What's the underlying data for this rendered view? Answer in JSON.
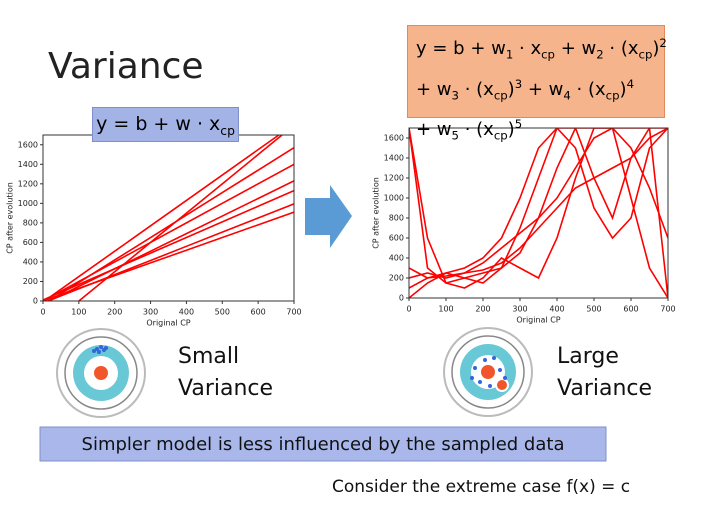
{
  "title": "Variance",
  "charts": [
    {
      "type": "line",
      "formula": [
        [
          {
            "t": "y = b + w · x"
          },
          {
            "t": "cp",
            "s": "sub"
          }
        ]
      ],
      "xlabel": "Original CP",
      "ylabel": "CP after evolution",
      "color": "#ff0000",
      "x": [
        0,
        100,
        200,
        300,
        400,
        500,
        600,
        700
      ],
      "xlim": [
        0,
        700
      ],
      "ylim": [
        0,
        1700
      ],
      "xticks": [
        0,
        100,
        200,
        300,
        400,
        500,
        600,
        700
      ],
      "yticks": [
        0,
        200,
        400,
        600,
        800,
        1000,
        1200,
        1400,
        1600
      ],
      "series": [
        {
          "values": [
            0,
            130,
            260,
            390,
            520,
            650,
            780,
            910
          ]
        },
        {
          "values": [
            -20,
            125,
            270,
            415,
            560,
            705,
            850,
            995
          ]
        },
        {
          "values": [
            10,
            170,
            330,
            490,
            650,
            810,
            970,
            1130
          ]
        },
        {
          "values": [
            -30,
            150,
            330,
            510,
            690,
            870,
            1050,
            1230
          ]
        },
        {
          "values": [
            0,
            200,
            400,
            600,
            800,
            1000,
            1200,
            1400
          ]
        },
        {
          "values": [
            -40,
            190,
            420,
            650,
            880,
            1110,
            1340,
            1570
          ]
        },
        {
          "values": [
            -10,
            250,
            510,
            770,
            1030,
            1290,
            1550,
            1810
          ]
        },
        {
          "values": [
            -300,
            0,
            300,
            600,
            900,
            1200,
            1500,
            1800
          ]
        }
      ],
      "target": [
        "Small",
        "Variance"
      ]
    },
    {
      "type": "line",
      "formula": [
        [
          {
            "t": "y = b + w"
          },
          {
            "t": "1",
            "s": "sub"
          },
          {
            "t": " · x"
          },
          {
            "t": "cp",
            "s": "sub"
          },
          {
            "t": " + w"
          },
          {
            "t": "2",
            "s": "sub"
          },
          {
            "t": " · (x"
          },
          {
            "t": "cp",
            "s": "sub"
          },
          {
            "t": ")"
          },
          {
            "t": "2",
            "s": "sup"
          }
        ],
        [
          {
            "t": "+ w"
          },
          {
            "t": "3",
            "s": "sub"
          },
          {
            "t": " · (x"
          },
          {
            "t": "cp",
            "s": "sub"
          },
          {
            "t": ")"
          },
          {
            "t": "3",
            "s": "sup"
          },
          {
            "t": " + w"
          },
          {
            "t": "4",
            "s": "sub"
          },
          {
            "t": " · (x"
          },
          {
            "t": "cp",
            "s": "sub"
          },
          {
            "t": ")"
          },
          {
            "t": "4",
            "s": "sup"
          }
        ],
        [
          {
            "t": "+ w"
          },
          {
            "t": "5",
            "s": "sub"
          },
          {
            "t": " · (x"
          },
          {
            "t": "cp",
            "s": "sub"
          },
          {
            "t": ")"
          },
          {
            "t": "5",
            "s": "sup"
          }
        ]
      ],
      "xlabel": "Original CP",
      "ylabel": "CP after evolution",
      "color": "#ff0000",
      "x": [
        0,
        50,
        100,
        150,
        200,
        250,
        300,
        350,
        400,
        450,
        500,
        550,
        600,
        650,
        700
      ],
      "xlim": [
        0,
        700
      ],
      "ylim": [
        0,
        1700
      ],
      "xticks": [
        0,
        100,
        200,
        300,
        400,
        500,
        600,
        700
      ],
      "yticks": [
        0,
        200,
        400,
        600,
        800,
        1000,
        1200,
        1400,
        1600
      ],
      "series": [
        {
          "values": [
            1700,
            300,
            150,
            200,
            250,
            300,
            450,
            800,
            1300,
            1700,
            1700,
            1700,
            1700,
            1700,
            1700
          ]
        },
        {
          "values": [
            100,
            200,
            220,
            250,
            280,
            350,
            500,
            700,
            900,
            1100,
            1200,
            1300,
            1400,
            1600,
            1700
          ]
        },
        {
          "values": [
            0,
            150,
            250,
            200,
            150,
            300,
            700,
            1200,
            1700,
            1500,
            900,
            600,
            800,
            1500,
            1700
          ]
        },
        {
          "values": [
            300,
            200,
            250,
            300,
            400,
            600,
            1000,
            1500,
            1700,
            1700,
            1200,
            800,
            1400,
            1700,
            0
          ]
        },
        {
          "values": [
            200,
            250,
            200,
            250,
            350,
            500,
            650,
            800,
            1000,
            1300,
            1600,
            1700,
            1500,
            1100,
            600
          ]
        },
        {
          "values": [
            1700,
            600,
            150,
            100,
            200,
            400,
            300,
            200,
            600,
            1200,
            1700,
            1700,
            1000,
            300,
            0
          ]
        }
      ],
      "target": [
        "Large",
        "Variance"
      ]
    }
  ],
  "banner": "Simpler model is less influenced by the sampled data",
  "footer": "Consider the extreme case f(x) = c"
}
